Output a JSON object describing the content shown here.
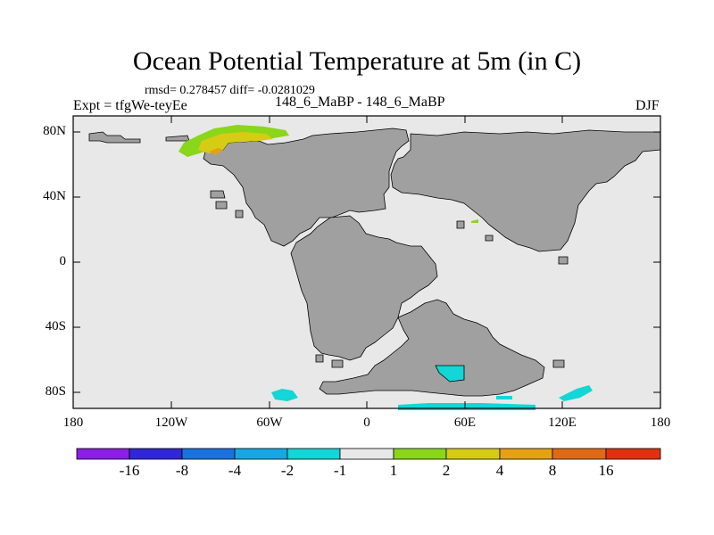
{
  "title": "Ocean Potential Temperature at 5m (in C)",
  "stats": "rmsd= 0.278457 diff= -0.0281029",
  "experiment": "Expt = tfgWe-teyEe",
  "runs": "148_6_MaBP - 148_6_MaBP",
  "season": "DJF",
  "lat_labels": [
    "80N",
    "40N",
    "0",
    "40S",
    "80S"
  ],
  "lon_labels": [
    "180",
    "120W",
    "60W",
    "0",
    "60E",
    "120E",
    "180"
  ],
  "colorbar": {
    "labels": [
      "-16",
      "-8",
      "-4",
      "-2",
      "-1",
      "1",
      "2",
      "4",
      "8",
      "16"
    ],
    "colors": [
      "#8a1fe6",
      "#3227d6",
      "#1a72e0",
      "#16a8e6",
      "#13d6d6",
      "#e8e8e8",
      "#8ad61a",
      "#d6cc14",
      "#e6a014",
      "#e06a14",
      "#e0320f"
    ]
  },
  "colors": {
    "land": "#a0a0a0",
    "ocean_neutral": "#e8e8e8",
    "warm_anomaly": "#d6cc14",
    "mild_warm_anomaly": "#8ad61a",
    "strong_warm_anomaly": "#e6a014",
    "cool_anomaly": "#13d6d6"
  }
}
